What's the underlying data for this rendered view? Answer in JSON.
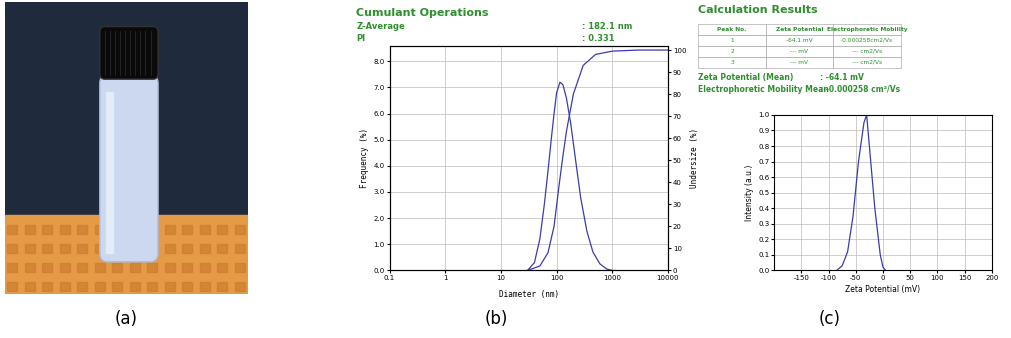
{
  "photo": {
    "panel_label": "(a)"
  },
  "chart_data": [
    {
      "type": "line",
      "panel_label": "(b)",
      "title": "Cumulant Operations",
      "annotations": [
        {
          "label": "Z-Average",
          "value": ": 182.1 nm"
        },
        {
          "label": "PI",
          "value": ": 0.331"
        }
      ],
      "x_label": "Diameter (nm)",
      "y_label": "Frequency (%)",
      "y2_label": "Undersize (%)",
      "log": "x",
      "grid": true,
      "xlim": [
        0.1,
        10000
      ],
      "xticks": [
        0.1,
        1,
        10,
        100,
        1000,
        10000
      ],
      "ylim": [
        0,
        8.6
      ],
      "yticks": [
        0.0,
        1.0,
        2.0,
        3.0,
        4.0,
        5.0,
        6.0,
        7.0,
        8.0
      ],
      "y2lim": [
        0,
        102
      ],
      "y2ticks": [
        0,
        10,
        20,
        30,
        40,
        50,
        60,
        70,
        80,
        90,
        100
      ],
      "series": [
        {
          "color": "#3b3bb0",
          "line_style": "solid",
          "x": [
            30,
            40,
            50,
            60,
            70,
            80,
            90,
            100,
            115,
            130,
            150,
            180,
            220,
            270,
            350,
            450,
            600,
            800,
            1000
          ],
          "values": [
            0,
            0.3,
            1.2,
            2.5,
            3.8,
            5.0,
            6.0,
            6.8,
            7.2,
            7.1,
            6.6,
            5.6,
            4.2,
            2.8,
            1.5,
            0.7,
            0.25,
            0.05,
            0
          ]
        },
        {
          "axis": "y2",
          "color": "#3b3bb0",
          "line_style": "solid",
          "x": [
            30,
            50,
            70,
            90,
            110,
            130,
            150,
            200,
            300,
            500,
            1000,
            3000,
            10000
          ],
          "values": [
            0,
            2,
            8,
            20,
            38,
            52,
            63,
            80,
            93,
            98,
            99.5,
            100,
            100
          ]
        }
      ]
    },
    {
      "type": "line",
      "panel_label": "(c)",
      "table": {
        "title": "Calculation Results",
        "columns": [
          "Peak No.",
          "Zeta Potential",
          "Electrophoretic Mobility"
        ],
        "rows": [
          [
            "1",
            "-64.1 mV",
            "-0.000258cm2/Vs"
          ],
          [
            "2",
            "--- mV",
            "--- cm2/Vs"
          ],
          [
            "3",
            "--- mV",
            "--- cm2/Vs"
          ]
        ]
      },
      "annotations": [
        {
          "label": "Zeta Potential (Mean)",
          "value": ": -64.1 mV"
        },
        {
          "label": "Electrophoretic Mobility Mean",
          "value": ": -0.000258 cm²/Vs"
        }
      ],
      "x_label": "Zeta Potential (mV)",
      "y_label": "Intensity (a.u.)",
      "grid": true,
      "xlim": [
        -200,
        200
      ],
      "xticks": [
        -150,
        -100,
        -50,
        0,
        50,
        100,
        150,
        200
      ],
      "ylim": [
        0,
        1.0
      ],
      "yticks": [
        0.0,
        0.1,
        0.2,
        0.3,
        0.4,
        0.5,
        0.6,
        0.7,
        0.8,
        0.9,
        1.0
      ],
      "series": [
        {
          "color": "#3b3bb0",
          "line_style": "solid",
          "x": [
            -85,
            -75,
            -65,
            -55,
            -45,
            -35,
            -30,
            -25,
            -15,
            -5,
            0,
            5
          ],
          "values": [
            0,
            0.03,
            0.12,
            0.35,
            0.7,
            0.95,
            1.0,
            0.8,
            0.4,
            0.1,
            0.02,
            0
          ]
        }
      ]
    }
  ]
}
